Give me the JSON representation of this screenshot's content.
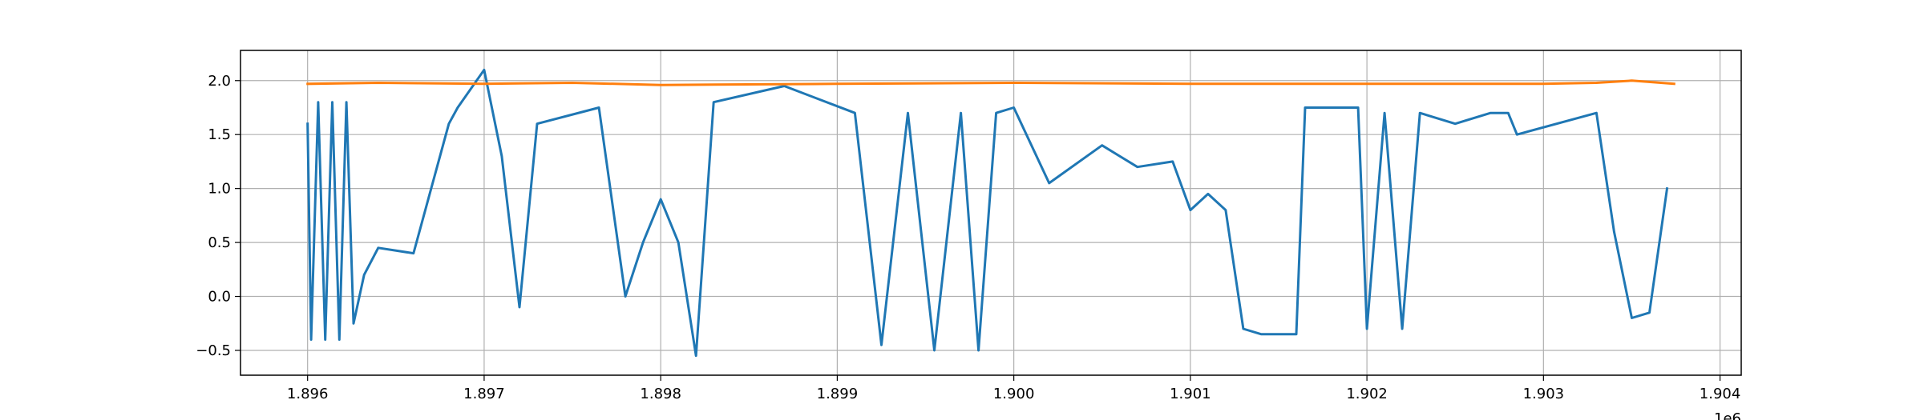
{
  "chart_data": {
    "type": "line",
    "title": "",
    "xlabel": "",
    "ylabel": "",
    "x_offset_label": "1e6",
    "xlim": [
      1.89562,
      1.90412
    ],
    "ylim": [
      -0.73,
      2.28
    ],
    "grid": true,
    "legend": "none",
    "x_ticks": [
      1.896,
      1.897,
      1.898,
      1.899,
      1.9,
      1.901,
      1.902,
      1.903,
      1.904
    ],
    "x_tick_labels": [
      "1.896",
      "1.897",
      "1.898",
      "1.899",
      "1.900",
      "1.901",
      "1.902",
      "1.903",
      "1.904"
    ],
    "y_ticks": [
      -0.5,
      0.0,
      0.5,
      1.0,
      1.5,
      2.0
    ],
    "y_tick_labels": [
      "−0.5",
      "0.0",
      "0.5",
      "1.0",
      "1.5",
      "2.0"
    ],
    "series": [
      {
        "color": "#1f77b4",
        "x": [
          1.896,
          1.89602,
          1.89606,
          1.8961,
          1.89614,
          1.89618,
          1.89622,
          1.89626,
          1.89632,
          1.8964,
          1.8966,
          1.8968,
          1.89685,
          1.897,
          1.8971,
          1.8972,
          1.8973,
          1.89765,
          1.8978,
          1.8979,
          1.898,
          1.8981,
          1.8982,
          1.8983,
          1.8987,
          1.8991,
          1.89925,
          1.8994,
          1.89955,
          1.8997,
          1.8998,
          1.8999,
          1.9,
          1.9002,
          1.9005,
          1.9007,
          1.9009,
          1.901,
          1.9011,
          1.9012,
          1.9013,
          1.9014,
          1.9016,
          1.90165,
          1.90195,
          1.902,
          1.9021,
          1.9022,
          1.9023,
          1.9025,
          1.9027,
          1.9028,
          1.90285,
          1.9033,
          1.9034,
          1.9035,
          1.9036,
          1.9037
        ],
        "y": [
          1.6,
          -0.4,
          1.8,
          -0.4,
          1.8,
          -0.4,
          1.8,
          -0.25,
          0.2,
          0.45,
          0.4,
          1.6,
          1.75,
          2.1,
          1.3,
          -0.1,
          1.6,
          1.75,
          0.0,
          0.5,
          0.9,
          0.5,
          -0.55,
          1.8,
          1.95,
          1.7,
          -0.45,
          1.7,
          -0.5,
          1.7,
          -0.5,
          1.7,
          1.75,
          1.05,
          1.4,
          1.2,
          1.25,
          0.8,
          0.95,
          0.8,
          -0.3,
          -0.35,
          -0.35,
          1.75,
          1.75,
          -0.3,
          1.7,
          -0.3,
          1.7,
          1.6,
          1.7,
          1.7,
          1.5,
          1.7,
          0.6,
          -0.2,
          -0.15,
          1.0
        ]
      },
      {
        "color": "#ff7f0e",
        "x": [
          1.896,
          1.8964,
          1.897,
          1.8975,
          1.898,
          1.899,
          1.9,
          1.901,
          1.902,
          1.903,
          1.9033,
          1.9035,
          1.90374
        ],
        "y": [
          1.97,
          1.98,
          1.97,
          1.98,
          1.96,
          1.97,
          1.98,
          1.97,
          1.97,
          1.97,
          1.98,
          2.0,
          1.97
        ]
      }
    ],
    "colors": {
      "blue": "#1f77b4",
      "orange": "#ff7f0e",
      "grid": "#b0b0b0"
    }
  }
}
